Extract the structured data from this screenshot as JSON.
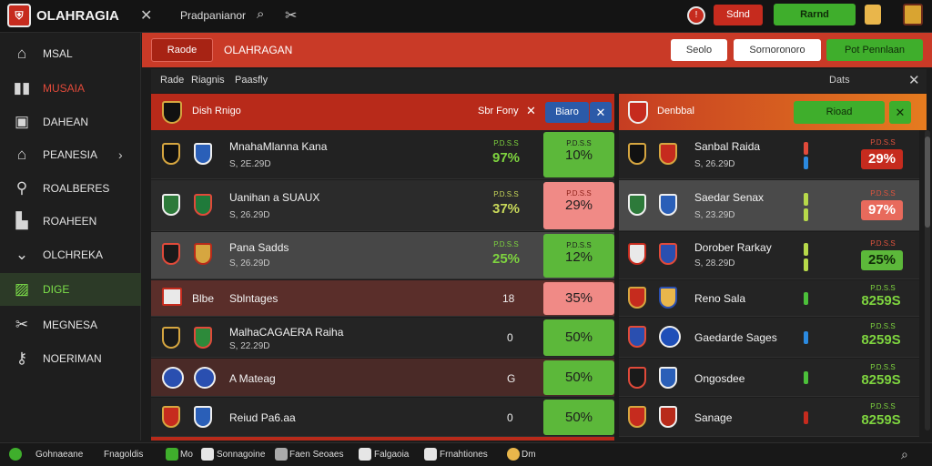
{
  "topbar": {
    "app_name": "OLAHRAGIA",
    "search_label": "Pradpanianor",
    "red_button": "Sdnd",
    "green_button": "Rarnd"
  },
  "sidebar": {
    "items": [
      {
        "label": "MSAL"
      },
      {
        "label": "MUSAIA"
      },
      {
        "label": "DAHEAN"
      },
      {
        "label": "PEANESIA"
      },
      {
        "label": "ROALBERES"
      },
      {
        "label": "ROAHEEN"
      },
      {
        "label": "OLCHREKA"
      },
      {
        "label": "DIGE"
      },
      {
        "label": "MEGNESA"
      },
      {
        "label": "NOERIMAN"
      }
    ]
  },
  "main": {
    "header_button": "Raode",
    "header_title": "OLAHRAGAN",
    "widget1": "Seolo",
    "widget2": "Sornoronoro",
    "widget3": "Pot Pennlaan"
  },
  "filters": {
    "items": [
      "Rade",
      "Riagnis",
      "Paasfly"
    ],
    "right_label": "Dats"
  },
  "left_panel": {
    "title": "Dish Rnigo",
    "select_label": "Sbr Fony",
    "button": "Biaro",
    "rows": [
      {
        "name": "MnahaMlanna Kana",
        "sub": "S, 2E.29D",
        "odd_small": "P.D.S.S",
        "odd": "97%",
        "pct_small": "P.D.S.S",
        "pct": "10%",
        "pct_color": "green",
        "odd_color": "green",
        "score": ""
      },
      {
        "name": "Uanihan a SUAUX",
        "sub": "S, 26.29D",
        "odd_small": "P.D.S.S",
        "odd": "37%",
        "pct_small": "P.D.S.S",
        "pct": "29%",
        "pct_color": "pink",
        "odd_color": "green",
        "score": ""
      },
      {
        "name": "Pana Sadds",
        "sub": "S, 26.29D",
        "odd_small": "P.D.S.S",
        "odd": "25%",
        "pct_small": "P.D.S.S",
        "pct": "12%",
        "pct_color": "green",
        "odd_color": "green",
        "score": ""
      },
      {
        "name": "Sblntages",
        "sub": "",
        "odd_small": "",
        "odd": "",
        "pct_small": "",
        "pct": "35%",
        "pct_color": "pink",
        "odd_color": "white",
        "score": "18",
        "prefix": "Blbe"
      },
      {
        "name": "MalhaCAGAERA Raiha",
        "sub": "S, 22.29D",
        "odd_small": "",
        "odd": "",
        "pct_small": "",
        "pct": "50%",
        "pct_color": "green",
        "odd_color": "white",
        "score": "0"
      },
      {
        "name": "A Mateag",
        "sub": "",
        "odd_small": "",
        "odd": "",
        "pct_small": "",
        "pct": "50%",
        "pct_color": "green",
        "odd_color": "white",
        "score": "G"
      },
      {
        "name": "Reiud Pa6.aa",
        "sub": "",
        "odd_small": "",
        "odd": "",
        "pct_small": "",
        "pct": "50%",
        "pct_color": "green",
        "odd_color": "white",
        "score": "0"
      }
    ]
  },
  "right_panel": {
    "title": "Denbbal",
    "button": "Rioad",
    "rows": [
      {
        "name": "Sanbal Raida",
        "sub": "S, 26.29D",
        "odd_small": "P.D.S.S",
        "odd": "29%",
        "odd_style": "red"
      },
      {
        "name": "Saedar Senax",
        "sub": "S, 23.29D",
        "odd_small": "P.D.S.S",
        "odd": "97%",
        "odd_style": "red"
      },
      {
        "name": "Dorober Rarkay",
        "sub": "S, 28.29D",
        "odd_small": "P.D.S.S",
        "odd": "25%",
        "odd_style": "green"
      },
      {
        "name": "Reno Sala",
        "sub": "",
        "odd_small": "P.D.S.S",
        "odd": "8259S",
        "odd_style": "greentext"
      },
      {
        "name": "Gaedarde Sages",
        "sub": "",
        "odd_small": "P.D.S.S",
        "odd": "8259S",
        "odd_style": "greentext"
      },
      {
        "name": "Ongosdee",
        "sub": "",
        "odd_small": "P.D.S.S",
        "odd": "8259S",
        "odd_style": "greentext"
      },
      {
        "name": "Sanage",
        "sub": "",
        "odd_small": "P.D.S.S",
        "odd": "8259S",
        "odd_style": "greentext"
      }
    ]
  },
  "status": {
    "items": [
      "Gohnaeane",
      "Fnagoldis",
      "Mo",
      "Sonnagoine",
      "Faen Seoaes",
      "Falgaoia",
      "Frnahtiones",
      "Dm"
    ]
  },
  "colors": {
    "accent_red": "#c93a27",
    "accent_green": "#3fae2c",
    "pct_green": "#5cb83a",
    "pct_pink": "#f08a86"
  }
}
